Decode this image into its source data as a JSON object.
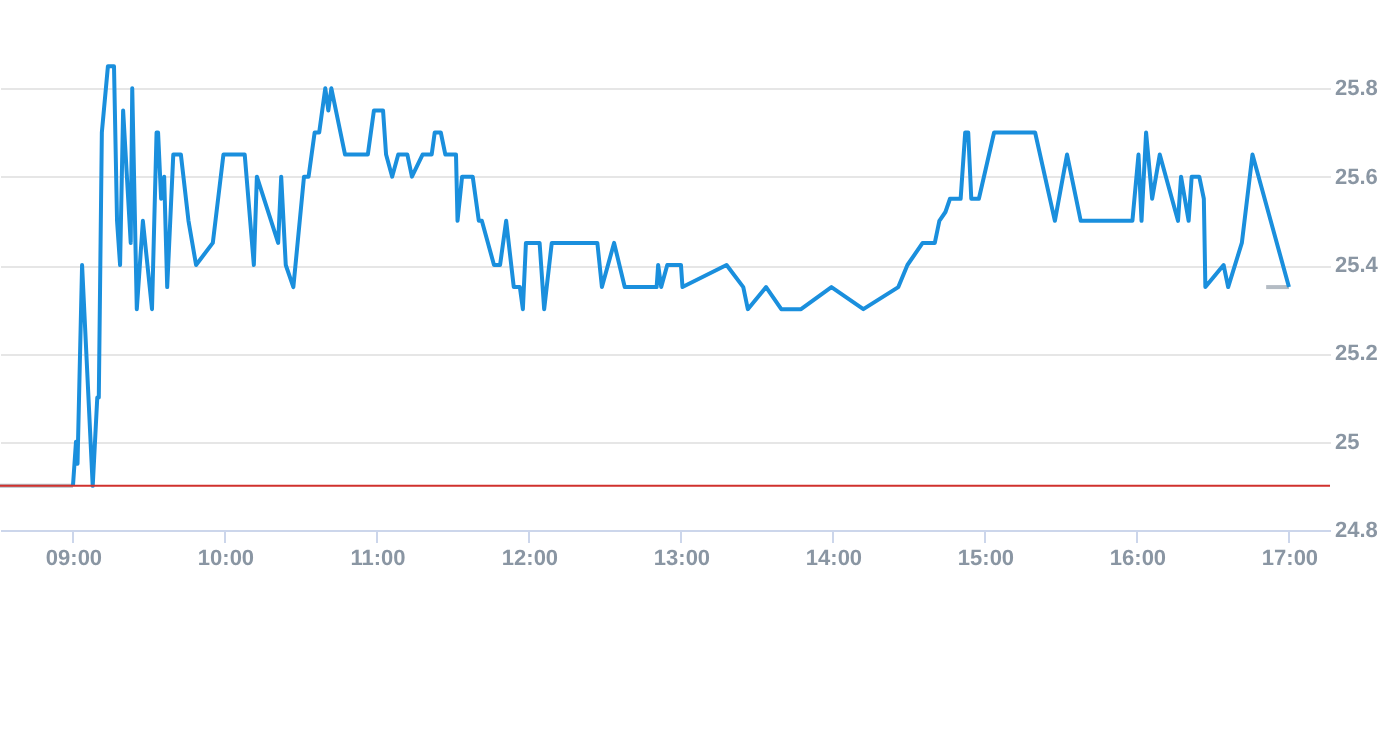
{
  "chart_data": {
    "type": "line",
    "xlim": [
      8.52,
      17.27
    ],
    "xticks": [
      {
        "value": 9,
        "label": "09:00"
      },
      {
        "value": 10,
        "label": "10:00"
      },
      {
        "value": 11,
        "label": "11:00"
      },
      {
        "value": 12,
        "label": "12:00"
      },
      {
        "value": 13,
        "label": "13:00"
      },
      {
        "value": 14,
        "label": "14:00"
      },
      {
        "value": 15,
        "label": "15:00"
      },
      {
        "value": 16,
        "label": "16:00"
      },
      {
        "value": 17,
        "label": "17:00"
      }
    ],
    "ylim": [
      24.8,
      26.0
    ],
    "yticks": [
      24.8,
      25,
      25.2,
      25.4,
      25.6,
      25.8
    ],
    "grid": "y",
    "marker": "none",
    "line_style": "solid",
    "series": [
      {
        "color": "#b4bcc4",
        "x": [
          8.52,
          9.0
        ],
        "values": [
          24.9,
          24.9
        ]
      },
      {
        "color": "#b4bcc4",
        "x": [
          16.85,
          17.0
        ],
        "values": [
          25.35,
          25.35
        ]
      },
      {
        "color": "#1a8fdd",
        "x": [
          9.0,
          9.02,
          9.03,
          9.06,
          9.13,
          9.16,
          9.17,
          9.19,
          9.23,
          9.27,
          9.29,
          9.31,
          9.33,
          9.38,
          9.39,
          9.42,
          9.46,
          9.52,
          9.55,
          9.56,
          9.58,
          9.6,
          9.62,
          9.66,
          9.71,
          9.76,
          9.81,
          9.92,
          9.99,
          10.13,
          10.19,
          10.21,
          10.35,
          10.37,
          10.4,
          10.45,
          10.52,
          10.55,
          10.59,
          10.62,
          10.66,
          10.68,
          10.7,
          10.79,
          10.94,
          10.98,
          11.04,
          11.06,
          11.1,
          11.14,
          11.2,
          11.23,
          11.3,
          11.36,
          11.38,
          11.42,
          11.45,
          11.52,
          11.53,
          11.56,
          11.63,
          11.67,
          11.69,
          11.77,
          11.81,
          11.85,
          11.9,
          11.94,
          11.96,
          11.98,
          12.07,
          12.1,
          12.15,
          12.45,
          12.48,
          12.56,
          12.63,
          12.84,
          12.85,
          12.87,
          12.91,
          13.0,
          13.01,
          13.3,
          13.41,
          13.44,
          13.56,
          13.66,
          13.79,
          13.99,
          14.2,
          14.43,
          14.49,
          14.59,
          14.67,
          14.7,
          14.74,
          14.77,
          14.84,
          14.87,
          14.89,
          14.91,
          14.96,
          15.06,
          15.33,
          15.46,
          15.54,
          15.63,
          15.97,
          16.01,
          16.03,
          16.06,
          16.1,
          16.15,
          16.27,
          16.29,
          16.34,
          16.36,
          16.41,
          16.44,
          16.45,
          16.57,
          16.6,
          16.69,
          16.76,
          17.0
        ],
        "values": [
          24.9,
          25.0,
          24.95,
          25.4,
          24.9,
          25.1,
          25.1,
          25.7,
          25.85,
          25.85,
          25.5,
          25.4,
          25.75,
          25.45,
          25.8,
          25.3,
          25.5,
          25.3,
          25.7,
          25.7,
          25.55,
          25.6,
          25.35,
          25.65,
          25.65,
          25.5,
          25.4,
          25.45,
          25.65,
          25.65,
          25.4,
          25.6,
          25.45,
          25.6,
          25.4,
          25.35,
          25.6,
          25.6,
          25.7,
          25.7,
          25.8,
          25.75,
          25.8,
          25.65,
          25.65,
          25.75,
          25.75,
          25.65,
          25.6,
          25.65,
          25.65,
          25.6,
          25.65,
          25.65,
          25.7,
          25.7,
          25.65,
          25.65,
          25.5,
          25.6,
          25.6,
          25.5,
          25.5,
          25.4,
          25.4,
          25.5,
          25.35,
          25.35,
          25.3,
          25.45,
          25.45,
          25.3,
          25.45,
          25.45,
          25.35,
          25.45,
          25.35,
          25.35,
          25.4,
          25.35,
          25.4,
          25.4,
          25.35,
          25.4,
          25.35,
          25.3,
          25.35,
          25.3,
          25.3,
          25.35,
          25.3,
          25.35,
          25.4,
          25.45,
          25.45,
          25.5,
          25.52,
          25.55,
          25.55,
          25.7,
          25.7,
          25.55,
          25.55,
          25.7,
          25.7,
          25.5,
          25.65,
          25.5,
          25.5,
          25.65,
          25.5,
          25.7,
          25.55,
          25.65,
          25.5,
          25.6,
          25.5,
          25.6,
          25.6,
          25.55,
          25.35,
          25.4,
          25.35,
          25.45,
          25.65,
          25.35
        ]
      }
    ],
    "ref_lines": [
      {
        "axis": "y",
        "value": 24.9,
        "color": "#d0312d"
      }
    ]
  }
}
